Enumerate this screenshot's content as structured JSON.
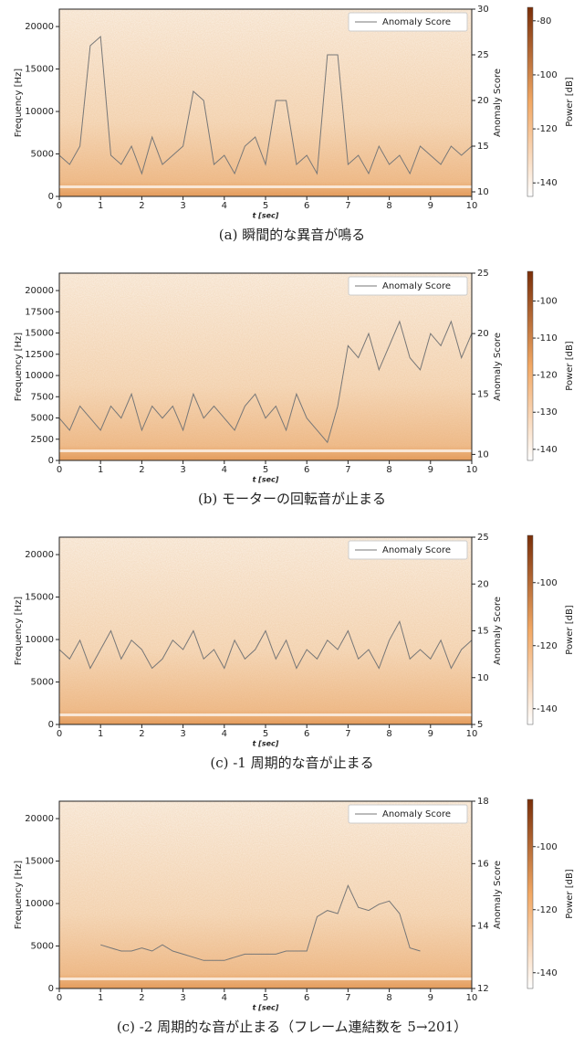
{
  "chart_data": [
    {
      "type": "line",
      "caption": "(a) 瞬間的な異音が鳴る",
      "xlabel": "t [sec]",
      "ylabel": "Frequency [Hz]",
      "y2label": "Anomaly Score",
      "legend": "upper right",
      "xlim": [
        0,
        10
      ],
      "xticks": [
        0,
        1,
        2,
        3,
        4,
        5,
        6,
        7,
        8,
        9,
        10
      ],
      "ylim": [
        0,
        22050
      ],
      "yticks": [
        0,
        5000,
        10000,
        15000,
        20000
      ],
      "y2lim": [
        9.5,
        30
      ],
      "y2ticks": [
        10,
        15,
        20,
        25,
        30
      ],
      "x": [
        0,
        0.25,
        0.5,
        0.75,
        1,
        1.25,
        1.5,
        1.75,
        2,
        2.25,
        2.5,
        2.75,
        3,
        3.25,
        3.5,
        3.75,
        4,
        4.25,
        4.5,
        4.75,
        5,
        5.25,
        5.5,
        5.75,
        6,
        6.25,
        6.5,
        6.75,
        7,
        7.25,
        7.5,
        7.75,
        8,
        8.25,
        8.5,
        8.75,
        9,
        9.25,
        9.5,
        9.75,
        10
      ],
      "series": [
        {
          "name": "Anomaly Score",
          "color": "#777777",
          "axis": "y2",
          "values": [
            14,
            13,
            15,
            26,
            27,
            14,
            13,
            15,
            12,
            16,
            13,
            14,
            15,
            21,
            20,
            13,
            14,
            12,
            15,
            16,
            13,
            20,
            20,
            13,
            14,
            12,
            25,
            25,
            13,
            14,
            12,
            15,
            13,
            14,
            12,
            15,
            14,
            13,
            15,
            14,
            15
          ]
        }
      ],
      "colorbar": {
        "label": "Power [dB]",
        "lim": [
          -145,
          -75
        ],
        "ticks": [
          -80,
          -100,
          -120,
          -140
        ]
      }
    },
    {
      "type": "line",
      "caption": "(b) モーターの回転音が止まる",
      "xlabel": "t [sec]",
      "ylabel": "Frequency [Hz]",
      "y2label": "Anomaly Score",
      "legend": "upper right",
      "xlim": [
        0,
        10
      ],
      "xticks": [
        0,
        1,
        2,
        3,
        4,
        5,
        6,
        7,
        8,
        9,
        10
      ],
      "ylim": [
        0,
        22050
      ],
      "yticks": [
        0,
        2500,
        5000,
        7500,
        10000,
        12500,
        15000,
        17500,
        20000
      ],
      "y2lim": [
        9.5,
        25
      ],
      "y2ticks": [
        10,
        15,
        20,
        25
      ],
      "x": [
        0,
        0.25,
        0.5,
        0.75,
        1,
        1.25,
        1.5,
        1.75,
        2,
        2.25,
        2.5,
        2.75,
        3,
        3.25,
        3.5,
        3.75,
        4,
        4.25,
        4.5,
        4.75,
        5,
        5.25,
        5.5,
        5.75,
        6,
        6.25,
        6.5,
        6.75,
        7,
        7.25,
        7.5,
        7.75,
        8,
        8.25,
        8.5,
        8.75,
        9,
        9.25,
        9.5,
        9.75,
        10
      ],
      "series": [
        {
          "name": "Anomaly Score",
          "color": "#777777",
          "axis": "y2",
          "values": [
            13,
            12,
            14,
            13,
            12,
            14,
            13,
            15,
            12,
            14,
            13,
            14,
            12,
            15,
            13,
            14,
            13,
            12,
            14,
            15,
            13,
            14,
            12,
            15,
            13,
            12,
            11,
            14,
            19,
            18,
            20,
            17,
            19,
            21,
            18,
            17,
            20,
            19,
            21,
            18,
            20
          ]
        }
      ],
      "colorbar": {
        "label": "Power [dB]",
        "lim": [
          -143,
          -92
        ],
        "ticks": [
          -100,
          -110,
          -120,
          -130,
          -140
        ]
      }
    },
    {
      "type": "line",
      "caption": "(c) -1 周期的な音が止まる",
      "xlabel": "t [sec]",
      "ylabel": "Frequency [Hz]",
      "y2label": "Anomaly Score",
      "legend": "upper right",
      "xlim": [
        0,
        10
      ],
      "xticks": [
        0,
        1,
        2,
        3,
        4,
        5,
        6,
        7,
        8,
        9,
        10
      ],
      "ylim": [
        0,
        22050
      ],
      "yticks": [
        0,
        5000,
        10000,
        15000,
        20000
      ],
      "y2lim": [
        5,
        25
      ],
      "y2ticks": [
        5,
        10,
        15,
        20,
        25
      ],
      "x": [
        0,
        0.25,
        0.5,
        0.75,
        1,
        1.25,
        1.5,
        1.75,
        2,
        2.25,
        2.5,
        2.75,
        3,
        3.25,
        3.5,
        3.75,
        4,
        4.25,
        4.5,
        4.75,
        5,
        5.25,
        5.5,
        5.75,
        6,
        6.25,
        6.5,
        6.75,
        7,
        7.25,
        7.5,
        7.75,
        8,
        8.25,
        8.5,
        8.75,
        9,
        9.25,
        9.5,
        9.75,
        10
      ],
      "series": [
        {
          "name": "Anomaly Score",
          "color": "#777777",
          "axis": "y2",
          "values": [
            13,
            12,
            14,
            11,
            13,
            15,
            12,
            14,
            13,
            11,
            12,
            14,
            13,
            15,
            12,
            13,
            11,
            14,
            12,
            13,
            15,
            12,
            14,
            11,
            13,
            12,
            14,
            13,
            15,
            12,
            13,
            11,
            14,
            16,
            12,
            13,
            12,
            14,
            11,
            13,
            14
          ]
        }
      ],
      "colorbar": {
        "label": "Power [dB]",
        "lim": [
          -145,
          -85
        ],
        "ticks": [
          -100,
          -120,
          -140
        ]
      }
    },
    {
      "type": "line",
      "caption": "(c) -2 周期的な音が止まる（フレーム連結数を 5→201）",
      "xlabel": "t [sec]",
      "ylabel": "Frequency [Hz]",
      "y2label": "Anomaly Score",
      "legend": "upper right",
      "xlim": [
        0,
        10
      ],
      "xticks": [
        0,
        1,
        2,
        3,
        4,
        5,
        6,
        7,
        8,
        9,
        10
      ],
      "ylim": [
        0,
        22050
      ],
      "yticks": [
        0,
        5000,
        10000,
        15000,
        20000
      ],
      "y2lim": [
        12,
        18
      ],
      "y2ticks": [
        12,
        14,
        16,
        18
      ],
      "x": [
        0,
        0.25,
        0.5,
        0.75,
        1,
        1.25,
        1.5,
        1.75,
        2,
        2.25,
        2.5,
        2.75,
        3,
        3.25,
        3.5,
        3.75,
        4,
        4.25,
        4.5,
        4.75,
        5,
        5.25,
        5.5,
        5.75,
        6,
        6.25,
        6.5,
        6.75,
        7,
        7.25,
        7.5,
        7.75,
        8,
        8.25,
        8.5,
        8.75,
        9,
        9.25,
        9.5,
        9.75,
        10
      ],
      "series": [
        {
          "name": "Anomaly Score",
          "color": "#777777",
          "axis": "y2",
          "values": [
            null,
            null,
            null,
            null,
            13.4,
            13.3,
            13.2,
            13.2,
            13.3,
            13.2,
            13.4,
            13.2,
            13.1,
            13.0,
            12.9,
            12.9,
            12.9,
            13.0,
            13.1,
            13.1,
            13.1,
            13.1,
            13.2,
            13.2,
            13.2,
            14.3,
            14.5,
            14.4,
            15.3,
            14.6,
            14.5,
            14.7,
            14.8,
            14.4,
            13.3,
            13.2,
            null,
            null,
            null,
            null,
            null
          ]
        }
      ],
      "colorbar": {
        "label": "Power [dB]",
        "lim": [
          -145,
          -85
        ],
        "ticks": [
          -100,
          -120,
          -140
        ]
      }
    }
  ]
}
